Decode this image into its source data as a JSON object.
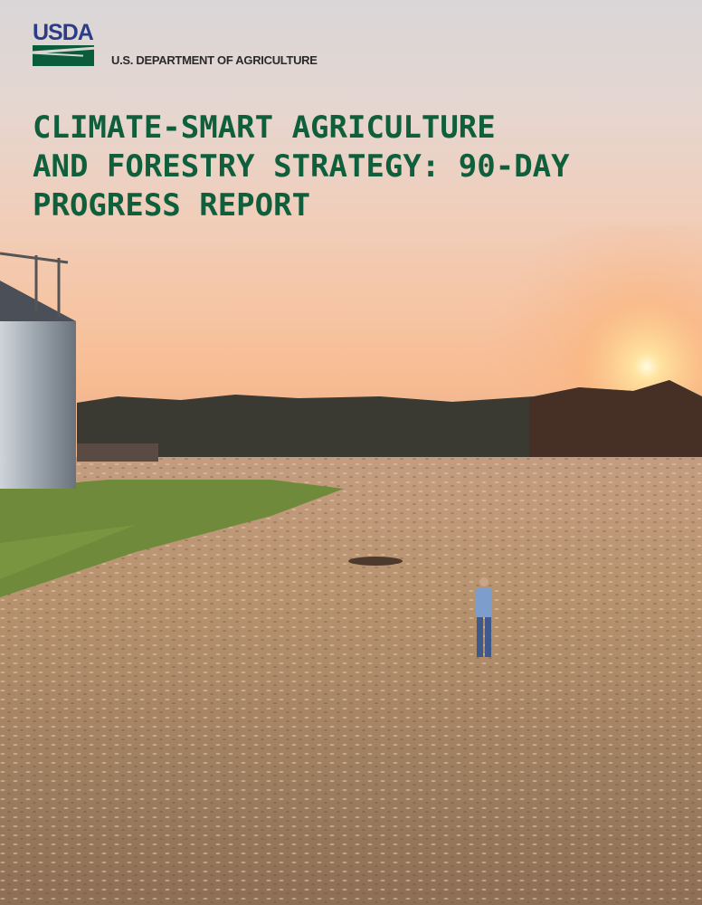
{
  "logo": {
    "text": "USDA",
    "agency": "U.S. DEPARTMENT OF AGRICULTURE"
  },
  "title_lines": [
    "CLIMATE-SMART AGRICULTURE",
    "AND FORESTRY STRATEGY: 90-DAY",
    "PROGRESS REPORT"
  ],
  "colors": {
    "title": "#0f5f3c",
    "logo_blue": "#2b3d86",
    "logo_green": "#0b5c3b"
  }
}
